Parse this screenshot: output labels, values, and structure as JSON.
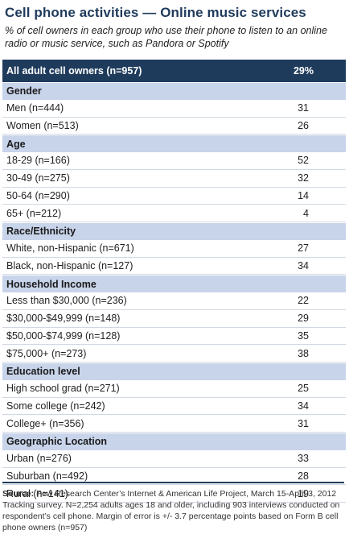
{
  "title": "Cell phone activities — Online music services",
  "subtitle": "% of cell owners in each group who use their phone to listen to an online radio or music service, such as Pandora or Spotify",
  "total": {
    "label": "All adult cell owners (n=957)",
    "value": "29%"
  },
  "groups": [
    {
      "header": "Gender",
      "rows": [
        {
          "label": "Men (n=444)",
          "value": "31"
        },
        {
          "label": "Women (n=513)",
          "value": "26"
        }
      ]
    },
    {
      "header": "Age",
      "rows": [
        {
          "label": "18-29 (n=166)",
          "value": "52"
        },
        {
          "label": "30-49 (n=275)",
          "value": "32"
        },
        {
          "label": "50-64 (n=290)",
          "value": "14"
        },
        {
          "label": "65+ (n=212)",
          "value": "4"
        }
      ]
    },
    {
      "header": "Race/Ethnicity",
      "rows": [
        {
          "label": "White, non-Hispanic (n=671)",
          "value": "27"
        },
        {
          "label": "Black, non-Hispanic (n=127)",
          "value": "34"
        }
      ]
    },
    {
      "header": "Household Income",
      "rows": [
        {
          "label": "Less than $30,000 (n=236)",
          "value": "22"
        },
        {
          "label": "$30,000-$49,999 (n=148)",
          "value": "29"
        },
        {
          "label": "$50,000-$74,999 (n=128)",
          "value": "35"
        },
        {
          "label": "$75,000+ (n=273)",
          "value": "38"
        }
      ]
    },
    {
      "header": "Education level",
      "rows": [
        {
          "label": "High school grad (n=271)",
          "value": "25"
        },
        {
          "label": "Some college (n=242)",
          "value": "34"
        },
        {
          "label": "College+ (n=356)",
          "value": "31"
        }
      ]
    },
    {
      "header": "Geographic Location",
      "rows": [
        {
          "label": "Urban (n=276)",
          "value": "33"
        },
        {
          "label": "Suburban (n=492)",
          "value": "28"
        },
        {
          "label": "Rural (n=141)",
          "value": "19"
        }
      ]
    }
  ],
  "source": {
    "label": "Source:",
    "text": "Pew Research Center’s Internet & American Life Project, March 15-April 3, 2012 Tracking survey. N=2,254 adults ages 18 and older, including 903 interviews conducted on respondent’s cell phone. Margin of error is +/- 3.7 percentage points based on Form B cell phone owners (n=957)"
  },
  "colors": {
    "header_bar": "#1f3b5c",
    "group_header": "#c8d4ea"
  },
  "chart_data": {
    "type": "table",
    "title": "Cell phone activities — Online music services",
    "subtitle": "% of cell owners in each group who use their phone to listen to an online radio or music service, such as Pandora or Spotify",
    "total": {
      "label": "All adult cell owners (n=957)",
      "value": 29
    },
    "groups": [
      {
        "name": "Gender",
        "categories": [
          "Men (n=444)",
          "Women (n=513)"
        ],
        "values": [
          31,
          26
        ]
      },
      {
        "name": "Age",
        "categories": [
          "18-29 (n=166)",
          "30-49 (n=275)",
          "50-64 (n=290)",
          "65+ (n=212)"
        ],
        "values": [
          52,
          32,
          14,
          4
        ]
      },
      {
        "name": "Race/Ethnicity",
        "categories": [
          "White, non-Hispanic (n=671)",
          "Black, non-Hispanic (n=127)"
        ],
        "values": [
          27,
          34
        ]
      },
      {
        "name": "Household Income",
        "categories": [
          "Less than $30,000 (n=236)",
          "$30,000-$49,999 (n=148)",
          "$50,000-$74,999 (n=128)",
          "$75,000+ (n=273)"
        ],
        "values": [
          22,
          29,
          35,
          38
        ]
      },
      {
        "name": "Education level",
        "categories": [
          "High school grad (n=271)",
          "Some college (n=242)",
          "College+ (n=356)"
        ],
        "values": [
          25,
          34,
          31
        ]
      },
      {
        "name": "Geographic Location",
        "categories": [
          "Urban (n=276)",
          "Suburban (n=492)",
          "Rural (n=141)"
        ],
        "values": [
          33,
          28,
          19
        ]
      }
    ]
  }
}
